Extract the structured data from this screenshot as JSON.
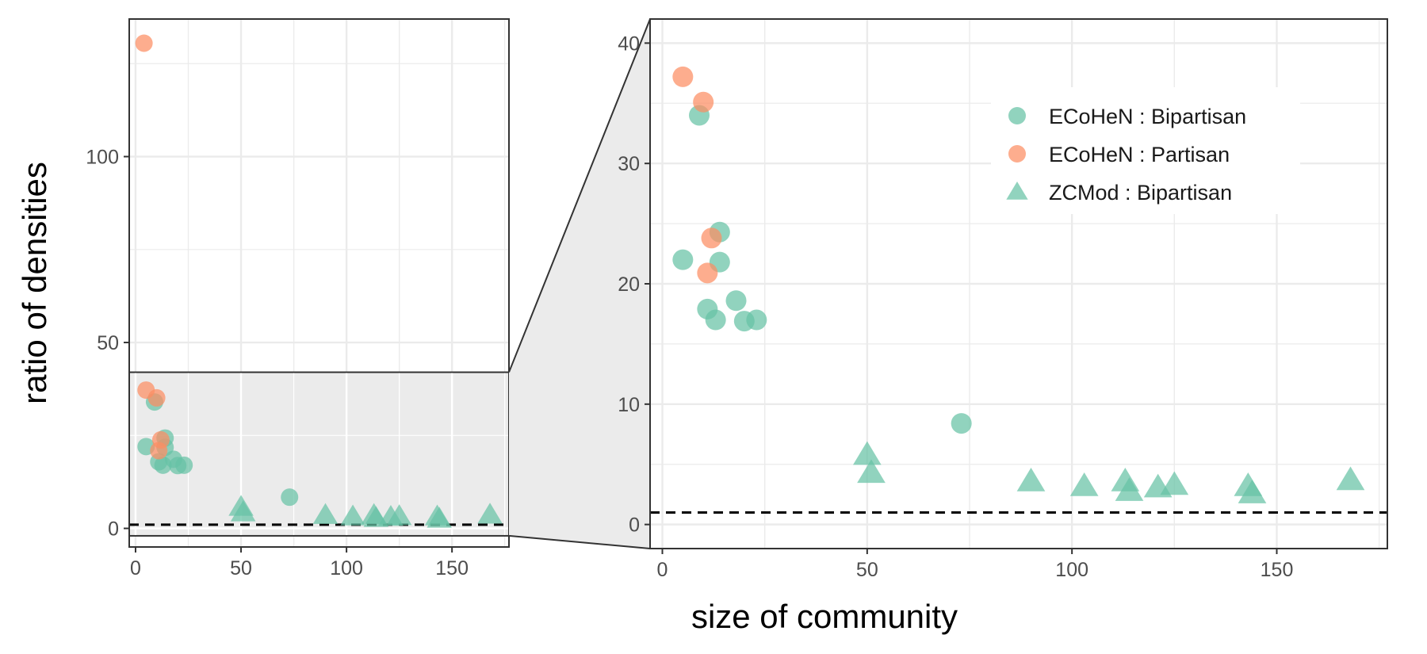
{
  "axis_titles": {
    "x": "size of community",
    "y": "ratio of densities"
  },
  "colors": {
    "ecohen_bipartisan": "#66c2a5",
    "ecohen_partisan": "#fc8d62",
    "zcmod_bipartisan": "#66c2a5",
    "grid": "#ebebeb",
    "zoom_fill": "#ebebeb",
    "reference_line": "#000000"
  },
  "chart_data": [
    {
      "type": "scatter",
      "panel": "overview",
      "title": "",
      "xlabel": "size of community",
      "ylabel": "ratio of densities",
      "xlim": [
        -3,
        177
      ],
      "ylim": [
        -5,
        137
      ],
      "x_ticks": [
        0,
        50,
        100,
        150
      ],
      "x_tick_labels": [
        "0",
        "50",
        "100",
        "150"
      ],
      "y_ticks": [
        0,
        50,
        100
      ],
      "y_tick_labels": [
        "0",
        "50",
        "100"
      ],
      "reference_line_y": 1,
      "zoom_region": {
        "ylim": [
          -2,
          42
        ]
      },
      "series_ref": "shared"
    },
    {
      "type": "scatter",
      "panel": "zoom",
      "title": "",
      "xlabel": "size of community",
      "ylabel": "",
      "xlim": [
        -3,
        177
      ],
      "ylim": [
        -2,
        42
      ],
      "x_ticks": [
        0,
        50,
        100,
        150
      ],
      "x_tick_labels": [
        "0",
        "50",
        "100",
        "150"
      ],
      "y_ticks": [
        0,
        10,
        20,
        30,
        40
      ],
      "y_tick_labels": [
        "0",
        "10",
        "20",
        "30",
        "40"
      ],
      "reference_line_y": 1,
      "legend": "top-right",
      "series_ref": "shared"
    }
  ],
  "series": [
    {
      "name": "ECoHeN : Bipartisan",
      "shape": "circle",
      "color": "#66c2a5",
      "points": [
        {
          "x": 9,
          "y": 34
        },
        {
          "x": 14,
          "y": 24.3
        },
        {
          "x": 5,
          "y": 22
        },
        {
          "x": 14,
          "y": 21.8
        },
        {
          "x": 18,
          "y": 18.6
        },
        {
          "x": 11,
          "y": 17.9
        },
        {
          "x": 13,
          "y": 17
        },
        {
          "x": 20,
          "y": 16.9
        },
        {
          "x": 23,
          "y": 17
        },
        {
          "x": 73,
          "y": 8.4
        }
      ]
    },
    {
      "name": "ECoHeN : Partisan",
      "shape": "circle",
      "color": "#fc8d62",
      "points": [
        {
          "x": 4,
          "y": 130.5
        },
        {
          "x": 5,
          "y": 37.2
        },
        {
          "x": 10,
          "y": 35.1
        },
        {
          "x": 12,
          "y": 23.8
        },
        {
          "x": 11,
          "y": 20.9
        }
      ]
    },
    {
      "name": "ZCMod : Bipartisan",
      "shape": "triangle",
      "color": "#66c2a5",
      "points": [
        {
          "x": 50,
          "y": 5.8
        },
        {
          "x": 51,
          "y": 4.3
        },
        {
          "x": 90,
          "y": 3.6
        },
        {
          "x": 103,
          "y": 3.2
        },
        {
          "x": 113,
          "y": 3.6
        },
        {
          "x": 114,
          "y": 2.8
        },
        {
          "x": 121,
          "y": 3.1
        },
        {
          "x": 125,
          "y": 3.3
        },
        {
          "x": 143,
          "y": 3.2
        },
        {
          "x": 144,
          "y": 2.6
        },
        {
          "x": 168,
          "y": 3.7
        }
      ]
    }
  ]
}
